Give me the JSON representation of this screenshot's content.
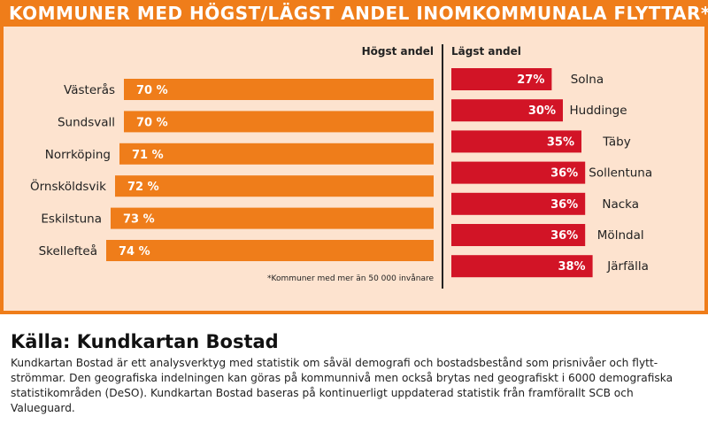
{
  "header": {
    "title": "KOMMUNER MED HÖGST/LÄGST ANDEL INOMKOMMUNALA FLYTTAR*"
  },
  "footnote": "*Kommuner med mer än 50 000 invånare",
  "source": {
    "title": "Källa: Kundkartan Bostad",
    "text": "Kundkartan Bostad är ett analysverktyg med statistik om såväl demografi och bostadsbestånd som prisnivåer och flytt­strömmar. Den geografiska indelningen kan göras på kommunnivå men också brytas ned geografiskt i 6000 demografiska statistikområden (DeSO). Kundkartan Bostad baseras på kontinuerligt uppdaterad statistik från framförallt SCB och Valueguard."
  },
  "colors": {
    "orange": "#ef7d1a",
    "red": "#d21426",
    "panel": "#fde3cf"
  },
  "chart_data": [
    {
      "type": "bar",
      "title": "Högst andel",
      "categories": [
        "Västerås",
        "Sundsvall",
        "Norrköping",
        "Örnsköldsvik",
        "Eskilstuna",
        "Skellefteå"
      ],
      "values": [
        70,
        70,
        71,
        72,
        73,
        74
      ],
      "value_labels": [
        "70 %",
        "70 %",
        "71 %",
        "72 %",
        "73 %",
        "74 %"
      ],
      "xlim": [
        0,
        100
      ],
      "orientation": "horizontal"
    },
    {
      "type": "bar",
      "title": "Lägst andel",
      "categories": [
        "Solna",
        "Huddinge",
        "Täby",
        "Sollentuna",
        "Nacka",
        "Mölndal",
        "Järfälla"
      ],
      "values": [
        27,
        30,
        35,
        36,
        36,
        36,
        38
      ],
      "value_labels": [
        "27%",
        "30%",
        "35%",
        "36%",
        "36%",
        "36%",
        "38%"
      ],
      "xlim": [
        0,
        100
      ],
      "orientation": "horizontal"
    }
  ]
}
